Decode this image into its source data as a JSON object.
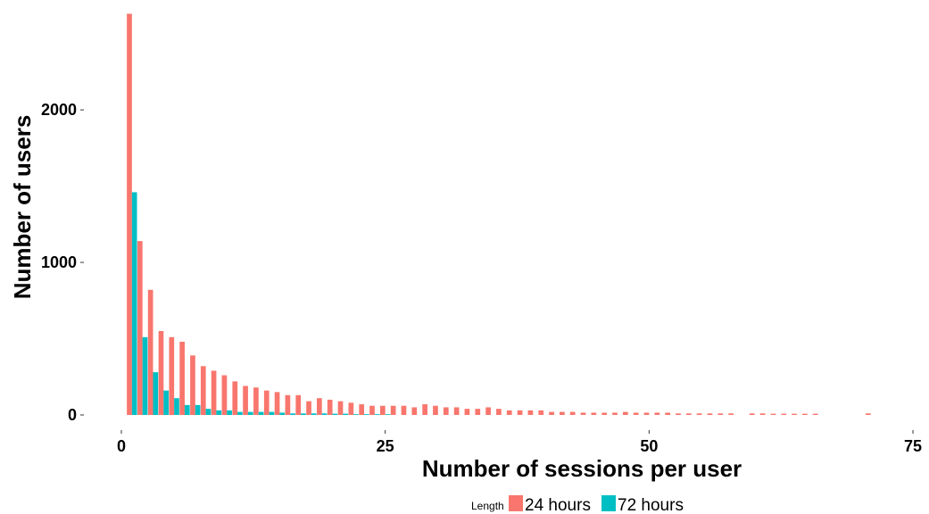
{
  "chart_data": {
    "type": "bar",
    "xlabel": "Number of sessions per user",
    "ylabel": "Number of users",
    "xlim": [
      0,
      75
    ],
    "ylim": [
      0,
      2650
    ],
    "xticks": [
      "0",
      "25",
      "50",
      "75"
    ],
    "yticks": [
      "0",
      "1000",
      "2000"
    ],
    "grid": false,
    "legend": {
      "title": "Length",
      "placement": "bottom"
    },
    "series": [
      {
        "name": "24 hours",
        "color": "#F8766D",
        "x": [
          1,
          2,
          3,
          4,
          5,
          6,
          7,
          8,
          9,
          10,
          11,
          12,
          13,
          14,
          15,
          16,
          17,
          18,
          19,
          20,
          21,
          22,
          23,
          24,
          25,
          26,
          27,
          28,
          29,
          30,
          31,
          32,
          33,
          34,
          35,
          36,
          37,
          38,
          39,
          40,
          41,
          42,
          43,
          44,
          45,
          46,
          47,
          48,
          49,
          50,
          51,
          52,
          53,
          54,
          55,
          56,
          57,
          58,
          60,
          61,
          62,
          63,
          64,
          65,
          66,
          71
        ],
        "values": [
          2630,
          1140,
          820,
          550,
          510,
          480,
          390,
          320,
          290,
          260,
          220,
          190,
          180,
          160,
          150,
          130,
          130,
          90,
          110,
          100,
          90,
          80,
          70,
          60,
          60,
          60,
          60,
          50,
          70,
          60,
          50,
          50,
          40,
          40,
          50,
          40,
          30,
          30,
          30,
          30,
          20,
          20,
          20,
          15,
          15,
          15,
          15,
          20,
          15,
          15,
          15,
          15,
          10,
          10,
          10,
          10,
          10,
          10,
          10,
          10,
          8,
          8,
          8,
          8,
          8,
          10
        ]
      },
      {
        "name": "72 hours",
        "color": "#00BFC4",
        "x": [
          1,
          2,
          3,
          4,
          5,
          6,
          7,
          8,
          9,
          10,
          11,
          12,
          13,
          14,
          15,
          16,
          17,
          18,
          19,
          20,
          21,
          22,
          23,
          24,
          25
        ],
        "values": [
          1460,
          510,
          280,
          160,
          110,
          65,
          65,
          40,
          30,
          30,
          20,
          20,
          20,
          20,
          15,
          10,
          10,
          10,
          10,
          8,
          8,
          5,
          5,
          5,
          5
        ]
      }
    ]
  }
}
